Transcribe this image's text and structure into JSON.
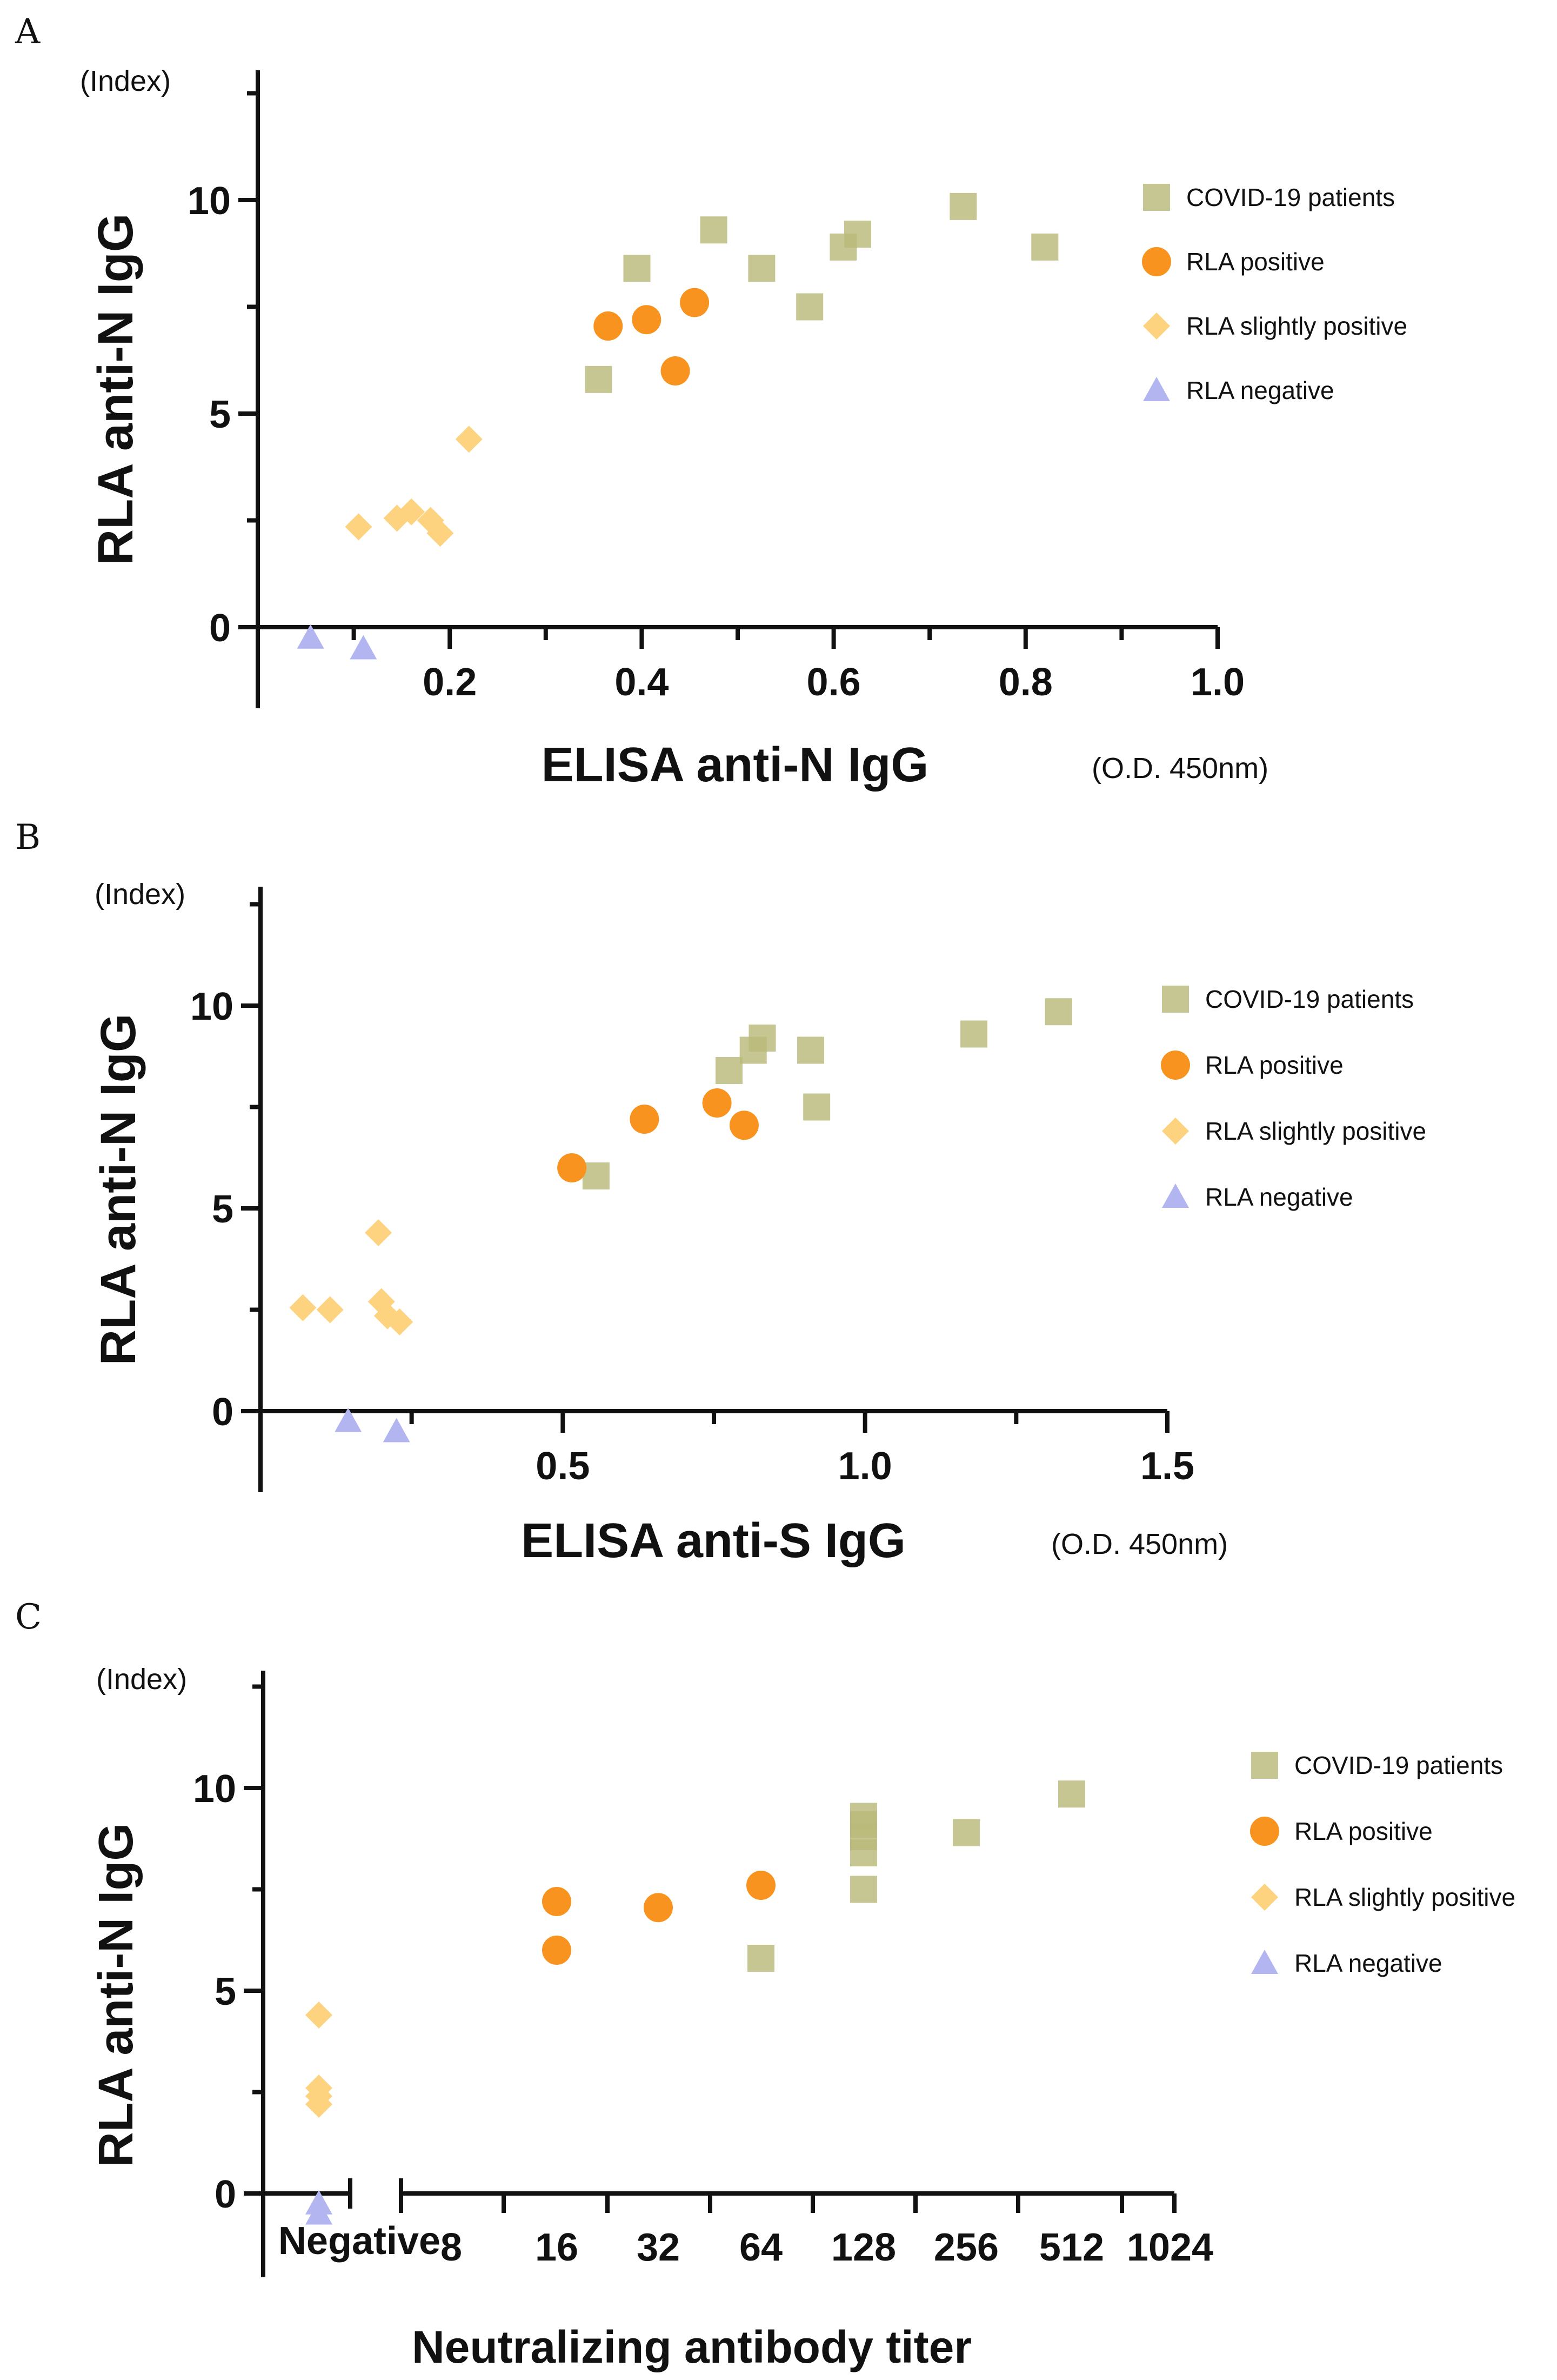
{
  "legend": {
    "series": [
      {
        "name": "COVID-19 patients",
        "color": "#b9b97a",
        "marker": "square"
      },
      {
        "name": "RLA positive",
        "color": "#f7931e",
        "marker": "circle"
      },
      {
        "name": "RLA slightly positive",
        "color": "#fdd37f",
        "marker": "diamond"
      },
      {
        "name": "RLA negative",
        "color": "#b3b5f0",
        "marker": "triangle"
      }
    ]
  },
  "chart_data": [
    {
      "panel": "A",
      "type": "scatter",
      "ylabel": "RLA anti-N IgG",
      "yunit": "(Index)",
      "xlabel": "ELISA anti-N IgG",
      "xunit": "(O.D. 450nm)",
      "xlim": [
        0.0,
        1.0
      ],
      "ylim": [
        -2,
        13
      ],
      "xticks": [
        "0.2",
        "0.4",
        "0.6",
        "0.8",
        "1.0"
      ],
      "xtick_values": [
        0.2,
        0.4,
        0.6,
        0.8,
        1.0
      ],
      "yticks": [
        "0",
        "5",
        "10"
      ],
      "ytick_values": [
        0,
        5,
        10
      ],
      "series": [
        {
          "name": "COVID-19 patients",
          "points": [
            [
              0.355,
              5.8
            ],
            [
              0.395,
              8.4
            ],
            [
              0.475,
              9.3
            ],
            [
              0.525,
              8.4
            ],
            [
              0.575,
              7.5
            ],
            [
              0.61,
              8.9
            ],
            [
              0.625,
              9.2
            ],
            [
              0.735,
              9.85
            ],
            [
              0.82,
              8.9
            ]
          ]
        },
        {
          "name": "RLA positive",
          "points": [
            [
              0.365,
              7.05
            ],
            [
              0.405,
              7.2
            ],
            [
              0.435,
              6.0
            ],
            [
              0.455,
              7.6
            ]
          ]
        },
        {
          "name": "RLA slightly positive",
          "points": [
            [
              0.105,
              2.35
            ],
            [
              0.145,
              2.55
            ],
            [
              0.16,
              2.7
            ],
            [
              0.18,
              2.5
            ],
            [
              0.19,
              2.2
            ],
            [
              0.22,
              4.4
            ]
          ]
        },
        {
          "name": "RLA negative",
          "points": [
            [
              0.055,
              -0.25
            ],
            [
              0.11,
              -0.5
            ]
          ]
        }
      ]
    },
    {
      "panel": "B",
      "type": "scatter",
      "ylabel": "RLA anti-N IgG",
      "yunit": "(Index)",
      "xlabel": "ELISA anti-S IgG",
      "xunit": "(O.D. 450nm)",
      "xlim": [
        0.0,
        1.5
      ],
      "ylim": [
        -2,
        13
      ],
      "xticks": [
        "0.5",
        "1.0",
        "1.5"
      ],
      "xtick_values": [
        0.5,
        1.0,
        1.5
      ],
      "yticks": [
        "0",
        "5",
        "10"
      ],
      "ytick_values": [
        0,
        5,
        10
      ],
      "series": [
        {
          "name": "COVID-19 patients",
          "points": [
            [
              0.555,
              5.8
            ],
            [
              0.775,
              8.4
            ],
            [
              0.815,
              8.9
            ],
            [
              0.83,
              9.2
            ],
            [
              0.91,
              8.9
            ],
            [
              0.92,
              7.5
            ],
            [
              1.18,
              9.3
            ],
            [
              1.32,
              9.85
            ]
          ]
        },
        {
          "name": "RLA positive",
          "points": [
            [
              0.515,
              6.0
            ],
            [
              0.635,
              7.2
            ],
            [
              0.755,
              7.6
            ],
            [
              0.8,
              7.05
            ]
          ]
        },
        {
          "name": "RLA slightly positive",
          "points": [
            [
              0.07,
              2.55
            ],
            [
              0.115,
              2.5
            ],
            [
              0.195,
              4.4
            ],
            [
              0.2,
              2.7
            ],
            [
              0.21,
              2.35
            ],
            [
              0.23,
              2.2
            ]
          ]
        },
        {
          "name": "RLA negative",
          "points": [
            [
              0.145,
              -0.25
            ],
            [
              0.225,
              -0.5
            ]
          ]
        }
      ]
    },
    {
      "panel": "C",
      "type": "scatter",
      "ylabel": "RLA anti-N IgG",
      "yunit": "(Index)",
      "xlabel": "Neutralizing antibody titer",
      "xscale": "log2 categorical",
      "xticks": [
        "Negative",
        "8",
        "16",
        "32",
        "64",
        "128",
        "256",
        "512",
        "1024"
      ],
      "ylim": [
        -2,
        13
      ],
      "yticks": [
        "0",
        "5",
        "10"
      ],
      "ytick_values": [
        0,
        5,
        10
      ],
      "series": [
        {
          "name": "COVID-19 patients",
          "points": [
            [
              "64",
              5.8
            ],
            [
              "128",
              7.5
            ],
            [
              "128",
              8.4
            ],
            [
              "128",
              8.8
            ],
            [
              "128",
              9.1
            ],
            [
              "128",
              9.3
            ],
            [
              "256",
              8.9
            ],
            [
              "512",
              9.85
            ]
          ]
        },
        {
          "name": "RLA positive",
          "points": [
            [
              "16",
              6.0
            ],
            [
              "16",
              7.2
            ],
            [
              "32",
              7.05
            ],
            [
              "64",
              7.6
            ]
          ]
        },
        {
          "name": "RLA slightly positive",
          "points": [
            [
              "Negative",
              2.2
            ],
            [
              "Negative",
              2.4
            ],
            [
              "Negative",
              2.6
            ],
            [
              "Negative",
              4.4
            ]
          ]
        },
        {
          "name": "RLA negative",
          "points": [
            [
              "Negative",
              -0.25
            ],
            [
              "Negative",
              -0.5
            ]
          ]
        }
      ]
    }
  ]
}
